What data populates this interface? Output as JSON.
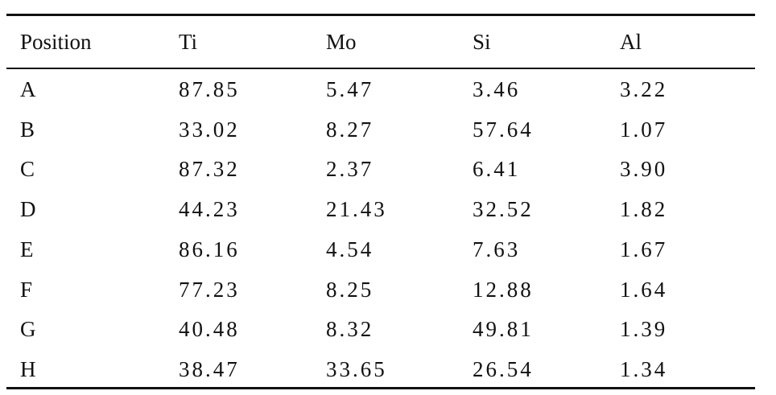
{
  "table": {
    "header": [
      "Position",
      "Ti",
      "Mo",
      "Si",
      "Al"
    ],
    "rows": [
      [
        "A",
        "87.85",
        "5.47",
        "3.46",
        "3.22"
      ],
      [
        "B",
        "33.02",
        "8.27",
        "57.64",
        "1.07"
      ],
      [
        "C",
        "87.32",
        "2.37",
        "6.41",
        "3.90"
      ],
      [
        "D",
        "44.23",
        "21.43",
        "32.52",
        "1.82"
      ],
      [
        "E",
        "86.16",
        "4.54",
        "7.63",
        "1.67"
      ],
      [
        "F",
        "77.23",
        "8.25",
        "12.88",
        "1.64"
      ],
      [
        "G",
        "40.48",
        "8.32",
        "49.81",
        "1.39"
      ],
      [
        "H",
        "38.47",
        "33.65",
        "26.54",
        "1.34"
      ]
    ]
  }
}
